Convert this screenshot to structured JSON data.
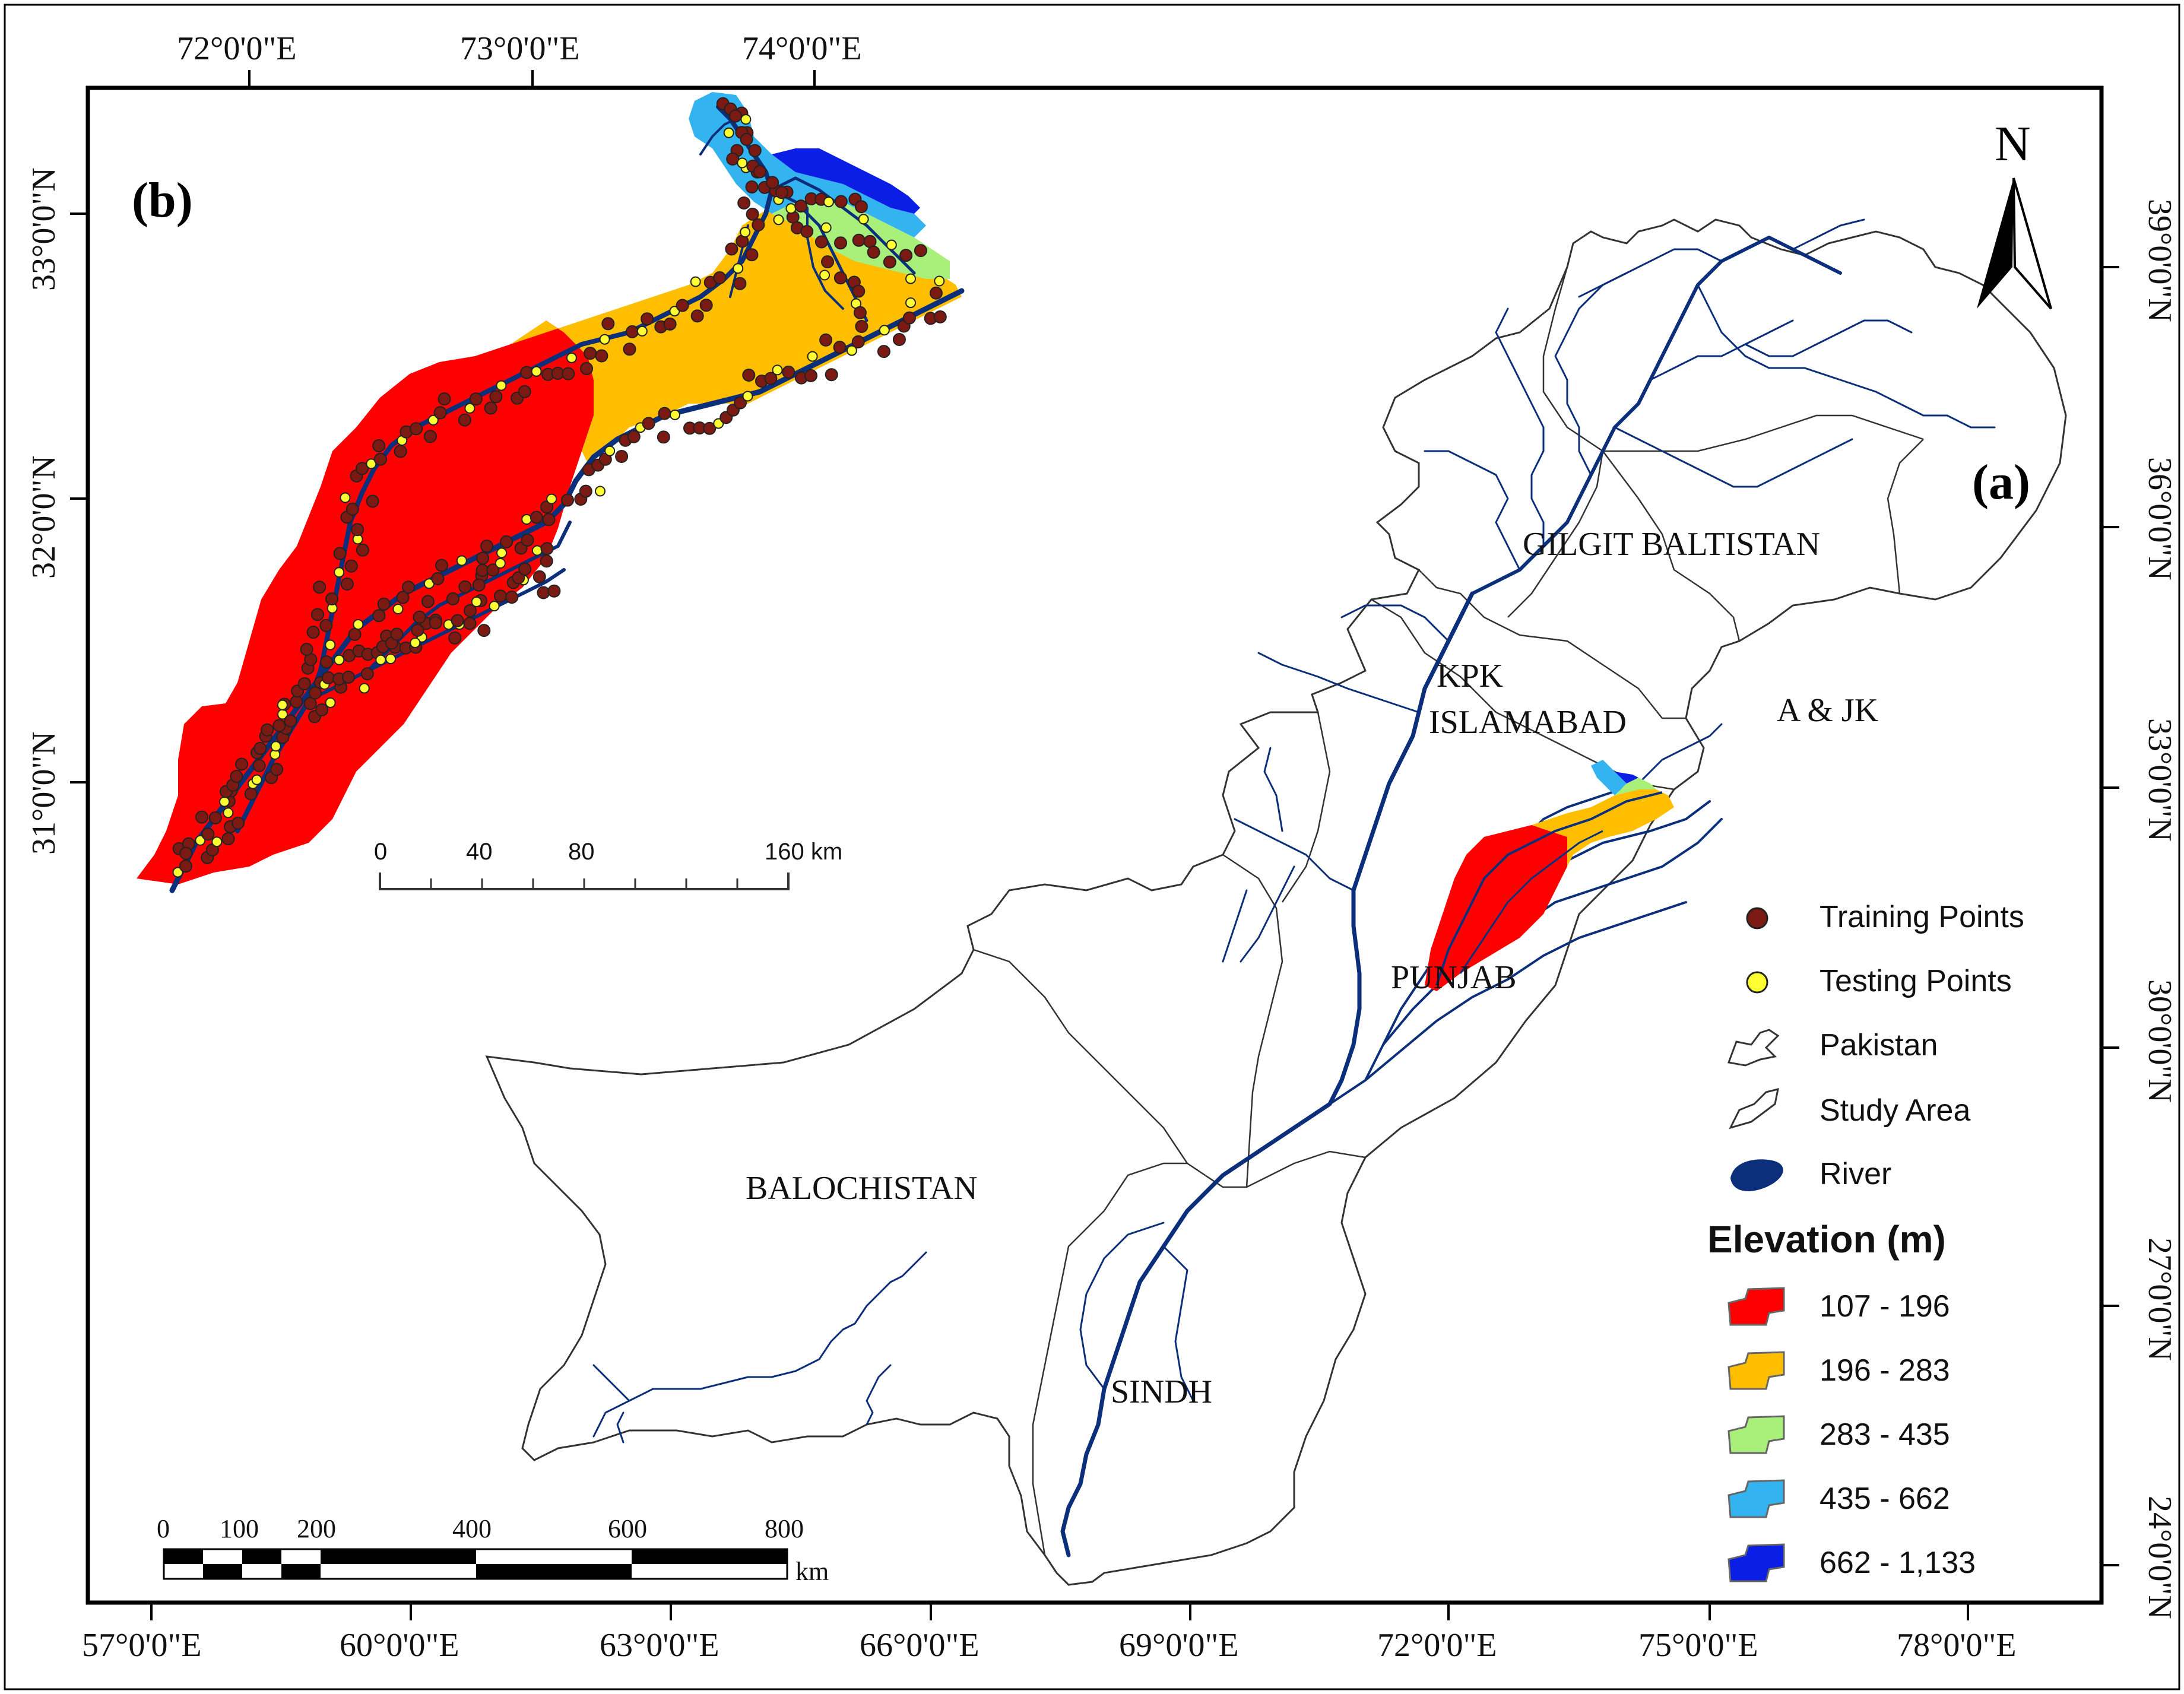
{
  "axes": {
    "top_lon": [
      "72°0'0\"E",
      "73°0'0\"E",
      "74°0'0\"E"
    ],
    "left_lat": [
      "33°0'0\"N",
      "32°0'0\"N",
      "31°0'0\"N"
    ],
    "bottom_lon": [
      "57°0'0\"E",
      "60°0'0\"E",
      "63°0'0\"E",
      "66°0'0\"E",
      "69°0'0\"E",
      "72°0'0\"E",
      "75°0'0\"E",
      "78°0'0\"E"
    ],
    "right_lat": [
      "39°0'0\"N",
      "36°0'0\"N",
      "33°0'0\"N",
      "30°0'0\"N",
      "27°0'0\"N",
      "24°0'0\"N"
    ]
  },
  "panels": {
    "inset_label": "(b)",
    "main_label": "(a)"
  },
  "north_arrow": {
    "label": "N"
  },
  "regions": {
    "gilgit": "GILGIT BALTISTAN",
    "kpk": "KPK",
    "islamabad": "ISLAMABAD",
    "ajk": "A & JK",
    "punjab": "PUNJAB",
    "balochistan": "BALOCHISTAN",
    "sindh": "SINDH"
  },
  "inset_scale": {
    "ticks": [
      "0",
      "40",
      "80",
      "160 km"
    ]
  },
  "main_scale": {
    "ticks": [
      "0",
      "100",
      "200",
      "400",
      "600",
      "800"
    ],
    "unit": "km"
  },
  "legend": {
    "training": "Training Points",
    "testing": "Testing Points",
    "pakistan": "Pakistan",
    "study_area": "Study Area",
    "river": "River",
    "elevation_title": "Elevation (m)",
    "classes": [
      {
        "label": "107 - 196",
        "color": "#ff0000"
      },
      {
        "label": "196 - 283",
        "color": "#ffbf00"
      },
      {
        "label": "283 - 435",
        "color": "#a8f07a"
      },
      {
        "label": "435 - 662",
        "color": "#33b4f0"
      },
      {
        "label": "662 - 1,133",
        "color": "#0a1ee6"
      }
    ]
  },
  "colors": {
    "river": "#0b2f7a",
    "training_point": "#7b1a12",
    "testing_point": "#ffff33",
    "outline": "#333333"
  }
}
